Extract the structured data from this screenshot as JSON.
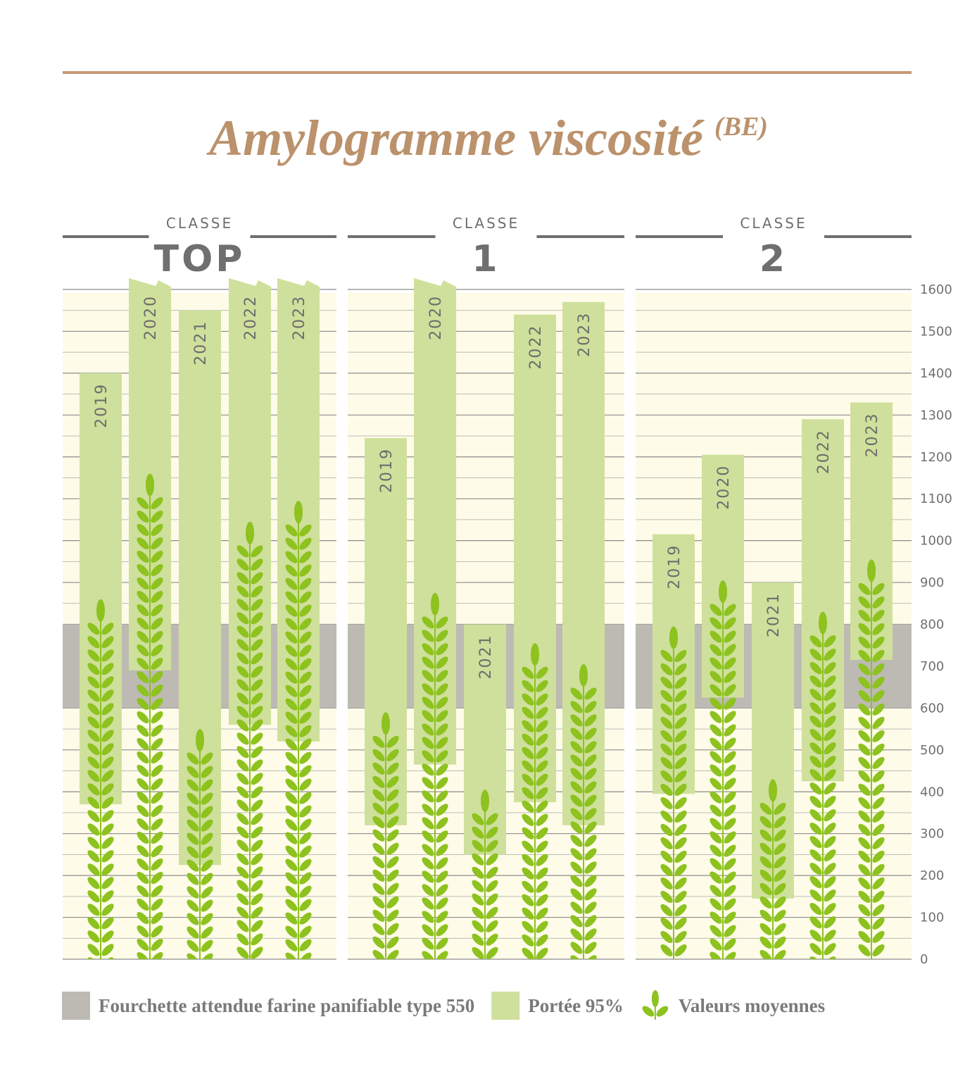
{
  "chart_data": {
    "type": "bar",
    "title": "Amylogramme viscosité",
    "title_superscript": "(BE)",
    "y_ticks": [
      "0",
      "100",
      "200",
      "300",
      "400",
      "500",
      "600",
      "700",
      "800",
      "900",
      "1000",
      "1100",
      "1200",
      "1300",
      "1400",
      "1500",
      "1600"
    ],
    "ylim": [
      0,
      1600
    ],
    "grid": true,
    "expected_range": [
      600,
      800
    ],
    "colors": {
      "expected_range": "#bdbab3",
      "range95": "#cfe09c",
      "mean": "#8dc21f",
      "plot_bg": "#fefbe8",
      "title": "#bb926c"
    },
    "groups": [
      {
        "label_small": "CLASSE",
        "label": "TOP",
        "bars": [
          {
            "year": "2019",
            "low": 370,
            "high": 1400,
            "mean": 860
          },
          {
            "year": "2020",
            "low": 690,
            "high": 1650,
            "mean": 1160
          },
          {
            "year": "2021",
            "low": 225,
            "high": 1550,
            "mean": 550
          },
          {
            "year": "2022",
            "low": 560,
            "high": 1650,
            "mean": 1045
          },
          {
            "year": "2023",
            "low": 520,
            "high": 1650,
            "mean": 1095
          }
        ]
      },
      {
        "label_small": "CLASSE",
        "label": "1",
        "bars": [
          {
            "year": "2019",
            "low": 320,
            "high": 1245,
            "mean": 590
          },
          {
            "year": "2020",
            "low": 465,
            "high": 1650,
            "mean": 875
          },
          {
            "year": "2021",
            "low": 250,
            "high": 800,
            "mean": 405
          },
          {
            "year": "2022",
            "low": 375,
            "high": 1540,
            "mean": 755
          },
          {
            "year": "2023",
            "low": 320,
            "high": 1570,
            "mean": 705
          }
        ]
      },
      {
        "label_small": "CLASSE",
        "label": "2",
        "bars": [
          {
            "year": "2019",
            "low": 395,
            "high": 1015,
            "mean": 795
          },
          {
            "year": "2020",
            "low": 625,
            "high": 1205,
            "mean": 905
          },
          {
            "year": "2021",
            "low": 145,
            "high": 900,
            "mean": 430
          },
          {
            "year": "2022",
            "low": 425,
            "high": 1290,
            "mean": 830
          },
          {
            "year": "2023",
            "low": 715,
            "high": 1330,
            "mean": 955
          }
        ]
      }
    ],
    "legend": [
      {
        "label": "Fourchette attendue farine panifiable type 550",
        "icon": "gray-square"
      },
      {
        "label": "Portée 95%",
        "icon": "green-square"
      },
      {
        "label": "Valeurs moyennes",
        "icon": "wheat-icon"
      }
    ]
  }
}
